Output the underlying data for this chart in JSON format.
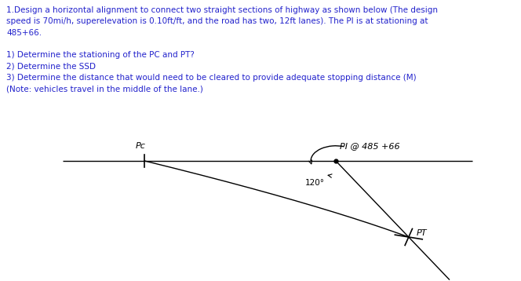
{
  "background_color": "#ffffff",
  "text_color": "#2222cc",
  "diagram_color": "#000000",
  "title_lines": [
    "1.Design a horizontal alignment to connect two straight sections of highway as shown below (The design",
    "speed is 70mi/h, superelevation is 0.10ft/ft, and the road has two, 12ft lanes). The PI is at stationing at",
    "485+66."
  ],
  "questions": [
    "1) Determine the stationing of the PC and PT?",
    "2) Determine the SSD",
    "3) Determine the distance that would need to be cleared to provide adequate stopping distance (M)",
    "(Note: vehicles travel in the middle of the lane.)"
  ],
  "PI_label": "PI @ 485 +66",
  "PC_label": "Pc",
  "PT_label": "PT",
  "angle_label": "120°",
  "figsize": [
    6.64,
    3.58
  ],
  "dpi": 100,
  "text_fontsize": 7.5,
  "diag_fontsize": 8.0
}
